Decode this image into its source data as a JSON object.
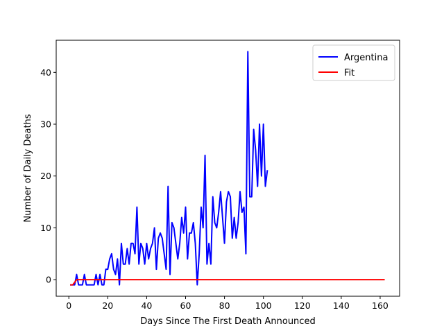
{
  "chart_data": {
    "type": "line",
    "xlabel": "Days Since The First Death Announced",
    "ylabel": "Number of Daily Deaths",
    "xlim": [
      -6.5,
      170
    ],
    "ylim": [
      -3.2,
      46.2
    ],
    "xticks": [
      0,
      20,
      40,
      60,
      80,
      100,
      120,
      140,
      160
    ],
    "yticks": [
      0,
      10,
      20,
      30,
      40
    ],
    "grid": false,
    "legend": "upper right",
    "series": [
      {
        "name": "Argentina",
        "color": "#0000ff",
        "x": [
          1,
          2,
          3,
          4,
          5,
          6,
          7,
          8,
          9,
          10,
          11,
          12,
          13,
          14,
          15,
          16,
          17,
          18,
          19,
          20,
          21,
          22,
          23,
          24,
          25,
          26,
          27,
          28,
          29,
          30,
          31,
          32,
          33,
          34,
          35,
          36,
          37,
          38,
          39,
          40,
          41,
          42,
          43,
          44,
          45,
          46,
          47,
          48,
          49,
          50,
          51,
          52,
          53,
          54,
          55,
          56,
          57,
          58,
          59,
          60,
          61,
          62,
          63,
          64,
          65,
          66,
          67,
          68,
          69,
          70,
          71,
          72,
          73,
          74,
          75,
          76,
          77,
          78,
          79,
          80,
          81,
          82,
          83,
          84,
          85,
          86,
          87,
          88,
          89,
          90,
          91,
          92,
          93,
          94,
          95,
          96,
          97,
          98,
          99,
          100,
          101,
          102
        ],
        "y": [
          -1,
          -1,
          -1,
          1,
          -1,
          -1,
          -1,
          1,
          -1,
          -1,
          -1,
          -1,
          -1,
          1,
          -1,
          1,
          -1,
          -1,
          2,
          2,
          4,
          5,
          2,
          1,
          4,
          -1,
          7,
          3,
          3,
          6,
          3,
          7,
          7,
          5,
          14,
          3,
          7,
          6,
          3,
          7,
          4,
          6,
          7,
          10,
          2,
          8,
          9,
          8,
          5,
          2,
          18,
          1,
          11,
          10,
          7,
          4,
          7,
          12,
          9,
          14,
          4,
          9,
          9,
          11,
          7,
          -1,
          5,
          14,
          10,
          24,
          3,
          7,
          3,
          16,
          11,
          10,
          13,
          17,
          12,
          7,
          15,
          17,
          16,
          8,
          12,
          8,
          11,
          17,
          13,
          14,
          5,
          44,
          16,
          16,
          29,
          25,
          18,
          30,
          20,
          30,
          18,
          21
        ]
      },
      {
        "name": "Fit",
        "color": "#ff0000",
        "x": [
          1,
          2,
          3,
          4,
          162
        ],
        "y": [
          -1,
          -1,
          -0.5,
          0,
          0
        ]
      }
    ]
  }
}
